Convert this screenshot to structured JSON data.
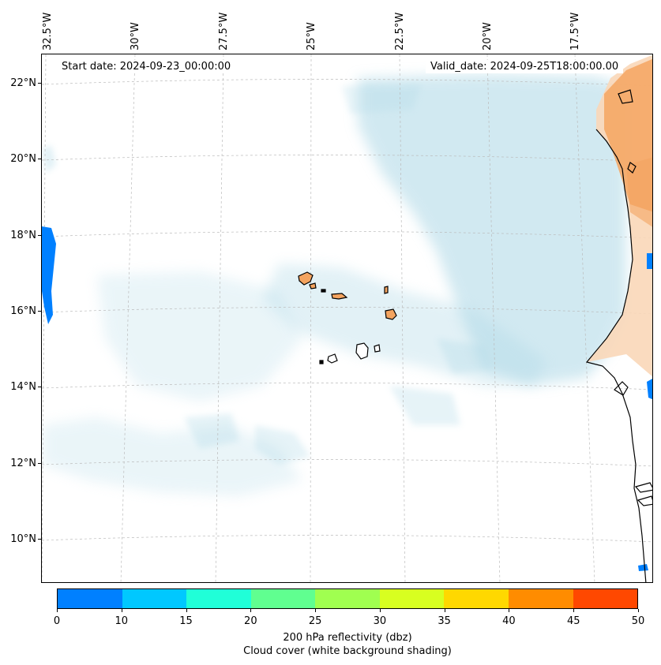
{
  "map": {
    "start_date": "Start date: 2024-09-23_00:00:00",
    "valid_date": "Valid_date: 2024-09-25T18:00:00.00",
    "lon_labels": [
      "32.5°W",
      "30°W",
      "27.5°W",
      "25°W",
      "22.5°W",
      "20°W",
      "17.5°W"
    ],
    "lat_labels": [
      "22°N",
      "20°N",
      "18°N",
      "16°N",
      "14°N",
      "12°N",
      "10°N"
    ],
    "colors": {
      "cloud": "#add8e6",
      "land_high": "#f4a460",
      "land_low": "#fad7b8",
      "coast": "#000000",
      "grid": "#bbbbbb"
    }
  },
  "colorbar": {
    "ticks": [
      "0",
      "10",
      "15",
      "20",
      "25",
      "30",
      "35",
      "40",
      "45",
      "50"
    ],
    "colors": [
      "#0080ff",
      "#00c8ff",
      "#20ffd8",
      "#60ff90",
      "#a0ff50",
      "#d8ff20",
      "#ffd800",
      "#ff8c00",
      "#ff4800"
    ],
    "label_line1": "200 hPa reflectivity (dbz)",
    "label_line2": "Cloud cover (white background shading)"
  }
}
